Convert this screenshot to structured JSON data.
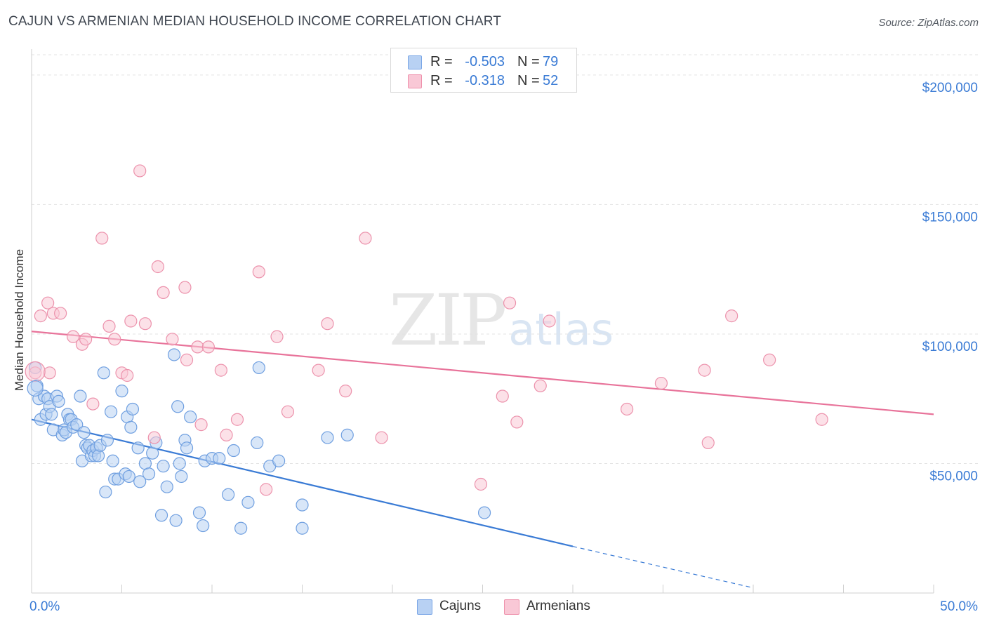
{
  "header": {
    "title": "CAJUN VS ARMENIAN MEDIAN HOUSEHOLD INCOME CORRELATION CHART",
    "source": "Source: ZipAtlas.com"
  },
  "watermark": {
    "zip": "ZIP",
    "atlas": "atlas"
  },
  "stats": [
    {
      "r_label": "R =",
      "r_value": "-0.503",
      "n_label": "N =",
      "n_value": "79",
      "color": "#b8d1f3",
      "border": "#7aa6e6"
    },
    {
      "r_label": "R =",
      "r_value": "-0.318",
      "n_label": "N =",
      "n_value": "52",
      "color": "#f9c8d6",
      "border": "#ee90ab"
    }
  ],
  "legend": [
    {
      "label": "Cajuns",
      "color": "#b8d1f3",
      "border": "#7aa6e6"
    },
    {
      "label": "Armenians",
      "color": "#f9c8d6",
      "border": "#ee90ab"
    }
  ],
  "chart_data": {
    "type": "scatter",
    "ylabel": "Median Household Income",
    "xlim": [
      0,
      50
    ],
    "ylim": [
      0,
      210000
    ],
    "x_tick_labels": [
      "0.0%",
      "50.0%"
    ],
    "y_ticks": [
      {
        "value": 50000,
        "label": "$50,000"
      },
      {
        "value": 100000,
        "label": "$100,000"
      },
      {
        "value": 150000,
        "label": "$150,000"
      },
      {
        "value": 200000,
        "label": "$200,000"
      }
    ],
    "grid": true,
    "colors": {
      "cajun": "#3a7bd5",
      "armenian": "#e8739a",
      "axis_text": "#3a7bd5"
    },
    "series": [
      {
        "name": "Cajuns",
        "points": [
          [
            0.2,
            87000
          ],
          [
            0.3,
            80000
          ],
          [
            0.4,
            75000
          ],
          [
            0.5,
            67000
          ],
          [
            0.7,
            76000
          ],
          [
            0.8,
            69000
          ],
          [
            0.9,
            75000
          ],
          [
            1.0,
            72000
          ],
          [
            1.1,
            69000
          ],
          [
            1.2,
            63000
          ],
          [
            1.4,
            76000
          ],
          [
            1.5,
            74000
          ],
          [
            1.7,
            61000
          ],
          [
            1.8,
            63000
          ],
          [
            1.9,
            62000
          ],
          [
            2.0,
            69000
          ],
          [
            2.1,
            67000
          ],
          [
            2.2,
            67000
          ],
          [
            2.3,
            64000
          ],
          [
            2.5,
            65000
          ],
          [
            2.7,
            76000
          ],
          [
            2.8,
            51000
          ],
          [
            2.9,
            62000
          ],
          [
            3.0,
            57000
          ],
          [
            3.1,
            56000
          ],
          [
            3.2,
            57000
          ],
          [
            3.3,
            53000
          ],
          [
            3.4,
            55000
          ],
          [
            3.5,
            53000
          ],
          [
            3.6,
            56000
          ],
          [
            3.7,
            53000
          ],
          [
            3.8,
            57000
          ],
          [
            4.0,
            85000
          ],
          [
            4.1,
            39000
          ],
          [
            4.2,
            59000
          ],
          [
            4.4,
            70000
          ],
          [
            4.5,
            51000
          ],
          [
            4.6,
            44000
          ],
          [
            4.8,
            44000
          ],
          [
            5.0,
            78000
          ],
          [
            5.2,
            46000
          ],
          [
            5.3,
            68000
          ],
          [
            5.4,
            45000
          ],
          [
            5.5,
            64000
          ],
          [
            5.6,
            71000
          ],
          [
            5.9,
            56000
          ],
          [
            6.0,
            43000
          ],
          [
            6.3,
            50000
          ],
          [
            6.5,
            46000
          ],
          [
            6.7,
            54000
          ],
          [
            6.9,
            58000
          ],
          [
            7.2,
            30000
          ],
          [
            7.3,
            49000
          ],
          [
            7.5,
            41000
          ],
          [
            7.9,
            92000
          ],
          [
            8.0,
            28000
          ],
          [
            8.1,
            72000
          ],
          [
            8.2,
            50000
          ],
          [
            8.3,
            45000
          ],
          [
            8.5,
            59000
          ],
          [
            8.6,
            56000
          ],
          [
            8.8,
            68000
          ],
          [
            9.3,
            31000
          ],
          [
            9.5,
            26000
          ],
          [
            9.6,
            51000
          ],
          [
            10.0,
            52000
          ],
          [
            10.4,
            52000
          ],
          [
            10.9,
            38000
          ],
          [
            11.2,
            55000
          ],
          [
            11.6,
            25000
          ],
          [
            12.0,
            35000
          ],
          [
            12.6,
            87000
          ],
          [
            12.5,
            58000
          ],
          [
            13.2,
            49000
          ],
          [
            13.7,
            51000
          ],
          [
            15.0,
            34000
          ],
          [
            15.0,
            25000
          ],
          [
            16.4,
            60000
          ],
          [
            17.5,
            61000
          ],
          [
            25.1,
            31000
          ]
        ]
      },
      {
        "name": "Armenians",
        "points": [
          [
            0.2,
            85000
          ],
          [
            0.5,
            107000
          ],
          [
            0.9,
            112000
          ],
          [
            1.0,
            85000
          ],
          [
            1.2,
            108000
          ],
          [
            1.6,
            108000
          ],
          [
            2.3,
            99000
          ],
          [
            2.8,
            96000
          ],
          [
            3.0,
            98000
          ],
          [
            3.4,
            73000
          ],
          [
            3.9,
            137000
          ],
          [
            4.3,
            103000
          ],
          [
            4.6,
            98000
          ],
          [
            5.0,
            85000
          ],
          [
            5.3,
            84000
          ],
          [
            5.5,
            105000
          ],
          [
            6.0,
            163000
          ],
          [
            6.3,
            104000
          ],
          [
            6.8,
            60000
          ],
          [
            7.0,
            126000
          ],
          [
            7.3,
            116000
          ],
          [
            7.8,
            98000
          ],
          [
            8.5,
            118000
          ],
          [
            8.6,
            90000
          ],
          [
            9.2,
            95000
          ],
          [
            9.4,
            65000
          ],
          [
            9.8,
            95000
          ],
          [
            10.5,
            86000
          ],
          [
            10.8,
            61000
          ],
          [
            11.4,
            67000
          ],
          [
            12.6,
            124000
          ],
          [
            13.0,
            40000
          ],
          [
            13.6,
            99000
          ],
          [
            14.2,
            70000
          ],
          [
            15.9,
            86000
          ],
          [
            16.4,
            104000
          ],
          [
            17.4,
            78000
          ],
          [
            18.5,
            137000
          ],
          [
            19.4,
            60000
          ],
          [
            24.9,
            42000
          ],
          [
            26.1,
            76000
          ],
          [
            26.5,
            112000
          ],
          [
            26.9,
            66000
          ],
          [
            28.2,
            80000
          ],
          [
            28.7,
            105000
          ],
          [
            33.0,
            71000
          ],
          [
            34.9,
            81000
          ],
          [
            37.3,
            86000
          ],
          [
            37.5,
            58000
          ],
          [
            38.8,
            107000
          ],
          [
            40.9,
            90000
          ],
          [
            43.8,
            67000
          ]
        ]
      }
    ],
    "trendlines": [
      {
        "series": "Cajuns",
        "from": [
          0,
          67000
        ],
        "to": [
          30,
          18000
        ],
        "dashed_to": [
          40,
          2000
        ]
      },
      {
        "series": "Armenians",
        "from": [
          0,
          101000
        ],
        "to": [
          50,
          69000
        ]
      }
    ]
  }
}
